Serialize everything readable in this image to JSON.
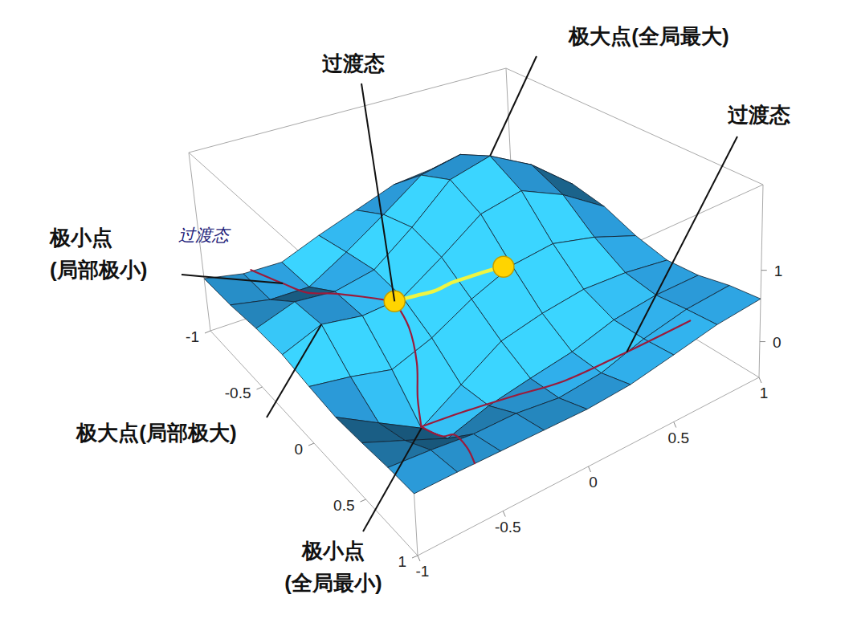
{
  "chart_data": {
    "type": "surface",
    "color": "#2ea6ea",
    "x": [
      -1,
      -0.75,
      -0.5,
      -0.25,
      0,
      0.25,
      0.5,
      0.75,
      1
    ],
    "y": [
      -1,
      -0.75,
      -0.5,
      -0.25,
      0,
      0.25,
      0.5,
      0.75,
      1
    ],
    "z": [
      [
        0.29,
        0.18,
        0.17,
        0.4,
        0.61,
        0.83,
        0.9,
        0.75,
        0.52
      ],
      [
        0.3,
        0.18,
        0.17,
        0.5,
        0.88,
        1.3,
        1.43,
        1.14,
        0.72
      ],
      [
        0.35,
        0.53,
        0.47,
        0.58,
        1.01,
        1.53,
        1.69,
        1.34,
        0.81
      ],
      [
        0.36,
        0.57,
        0.47,
        0.51,
        0.88,
        1.3,
        1.43,
        1.14,
        0.72
      ],
      [
        0.29,
        0.19,
        0.05,
        0.26,
        0.58,
        0.83,
        0.91,
        0.76,
        0.53
      ],
      [
        0.24,
        -0.09,
        -0.42,
        -0.07,
        0.29,
        0.43,
        0.52,
        0.5,
        0.42
      ],
      [
        0.26,
        0.03,
        -0.21,
        -0.03,
        0.08,
        0.18,
        0.36,
        0.44,
        0.45
      ],
      [
        0.29,
        0.25,
        0.19,
        0.19,
        0.12,
        0.18,
        0.37,
        0.5,
        0.55
      ],
      [
        0.3,
        0.3,
        0.29,
        0.28,
        0.27,
        0.31,
        0.42,
        0.54,
        0.6
      ]
    ],
    "xlim": [
      -1,
      1
    ],
    "ylim": [
      -1,
      1
    ],
    "zlim": [
      -0.5,
      2.2
    ],
    "xticks": [
      -1,
      -0.5,
      0,
      0.5,
      1
    ],
    "yticks": [
      -1,
      -0.5,
      0,
      0.5,
      1
    ],
    "zticks": [
      0,
      1
    ],
    "paths": [
      {
        "color": "#9b1b3b",
        "x": [
          -1,
          -0.85,
          -0.7,
          -0.55,
          -0.4,
          -0.25
        ],
        "y": [
          -0.7,
          -0.6,
          -0.55,
          -0.48,
          -0.4,
          -0.3
        ],
        "z": [
          0.2,
          0.15,
          0.2,
          0.35,
          0.45,
          0.5
        ]
      },
      {
        "color": "#9b1b3b",
        "x": [
          -0.25,
          -0.1,
          0.05,
          0.15,
          0.25
        ],
        "y": [
          -0.3,
          -0.32,
          -0.38,
          -0.45,
          -0.5
        ],
        "z": [
          0.5,
          0.35,
          0.1,
          -0.2,
          -0.4
        ]
      },
      {
        "color": "#9b1b3b",
        "x": [
          0.25,
          0.4,
          0.55,
          0.65,
          0.75,
          0.85
        ],
        "y": [
          -0.5,
          -0.35,
          -0.15,
          0.1,
          0.4,
          0.7
        ],
        "z": [
          -0.4,
          -0.15,
          0.05,
          0.12,
          0.3,
          0.5
        ]
      },
      {
        "color": "#9b1b3b",
        "x": [
          0.25,
          0.45,
          0.65,
          0.85,
          1
        ],
        "y": [
          -0.5,
          -0.5,
          -0.55,
          -0.6,
          -0.65
        ],
        "z": [
          -0.4,
          -0.25,
          0.1,
          0.25,
          0.3
        ]
      },
      {
        "color": "#eef542",
        "x": [
          -0.25,
          -0.2,
          -0.15,
          -0.12,
          -0.08,
          -0.04,
          0
        ],
        "y": [
          -0.3,
          -0.2,
          -0.12,
          -0.03,
          0.05,
          0.12,
          0.2
        ],
        "z": [
          0.5,
          0.56,
          0.62,
          0.7,
          0.76,
          0.82,
          0.86
        ]
      }
    ],
    "points": {
      "color": "#ffd400",
      "x": [
        -0.25,
        0
      ],
      "y": [
        -0.3,
        0.2
      ],
      "z": [
        0.5,
        0.86
      ]
    },
    "annotations": [
      {
        "lines": [
          "过渡态"
        ],
        "x": -0.25,
        "y": -0.3,
        "z": 0.5
      },
      {
        "lines": [
          "极大点(全局最大)"
        ],
        "x": -0.5,
        "y": 0.5,
        "z": 1.69
      },
      {
        "lines": [
          "过渡态"
        ],
        "x": 0.75,
        "y": 0.4,
        "z": 0.3
      },
      {
        "lines": [
          "极小点",
          "(局部极小)"
        ],
        "x": -0.85,
        "y": -0.6,
        "z": 0.15
      },
      {
        "lines": [
          "过渡态"
        ],
        "color": "#1c1c7a"
      },
      {
        "lines": [
          "极大点(局部极大)"
        ],
        "x": -0.25,
        "y": -0.75,
        "z": 0.57
      },
      {
        "lines": [
          "极小点",
          "(全局最小)"
        ],
        "x": 0.25,
        "y": -0.5,
        "z": -0.42
      }
    ]
  }
}
